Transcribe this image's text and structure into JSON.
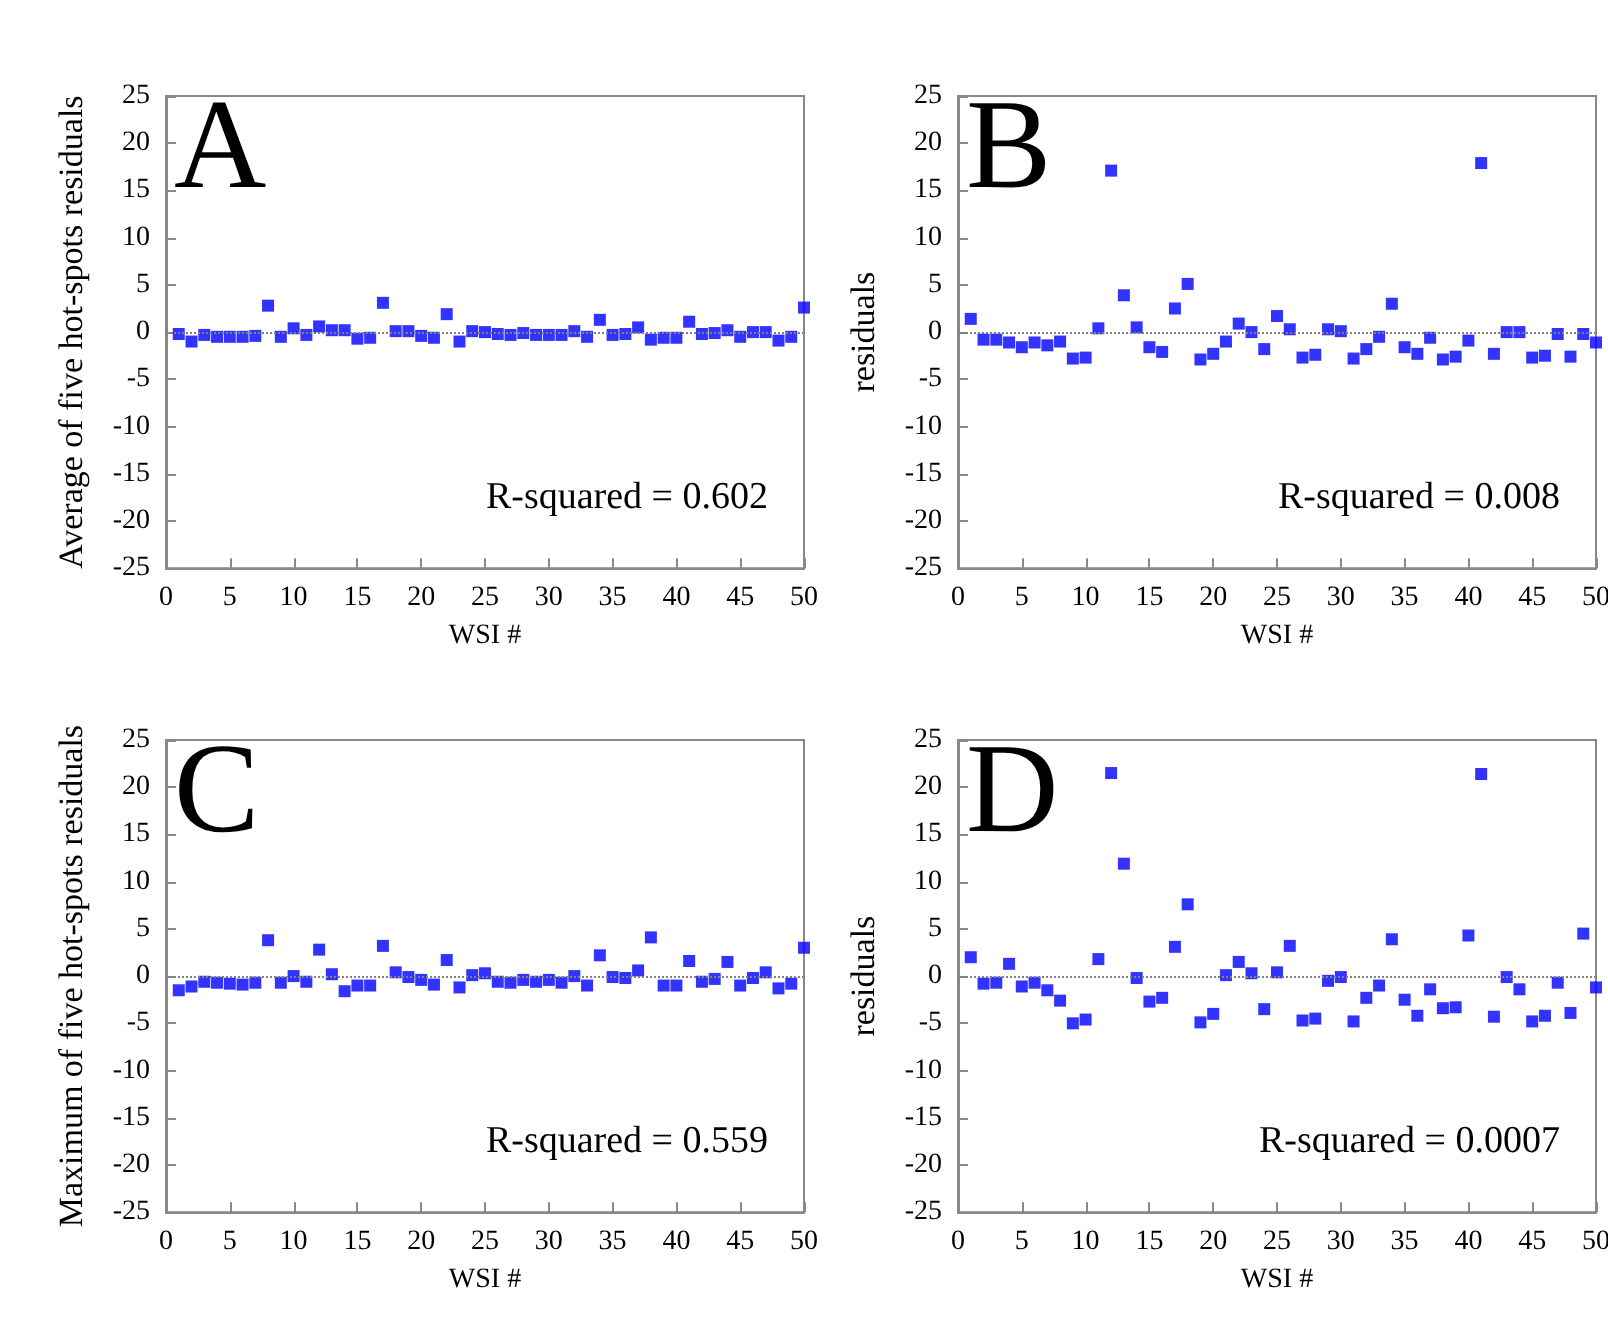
{
  "chart_data": [
    {
      "type": "scatter",
      "ylabel": "Average of five hot-spots residuals",
      "xlabel": "WSI #",
      "x": [
        1,
        2,
        3,
        4,
        5,
        6,
        7,
        8,
        9,
        10,
        11,
        12,
        13,
        14,
        15,
        16,
        17,
        18,
        19,
        20,
        21,
        22,
        23,
        24,
        25,
        26,
        27,
        28,
        29,
        30,
        31,
        32,
        33,
        34,
        35,
        36,
        37,
        38,
        39,
        40,
        41,
        42,
        43,
        44,
        45,
        46,
        47,
        48,
        49,
        50
      ],
      "series": [
        {
          "color": "#0000ff",
          "values": [
            -0.2,
            -1,
            -0.3,
            -0.5,
            -0.5,
            -0.5,
            -0.4,
            2.8,
            -0.5,
            0.4,
            -0.3,
            0.6,
            0.2,
            0.2,
            -0.7,
            -0.6,
            3.1,
            0.1,
            0.1,
            -0.4,
            -0.6,
            1.9,
            -1,
            0.1,
            0,
            -0.2,
            -0.3,
            -0.1,
            -0.3,
            -0.3,
            -0.3,
            0.1,
            -0.5,
            1.3,
            -0.3,
            -0.2,
            0.5,
            -0.8,
            -0.6,
            -0.6,
            1.1,
            -0.2,
            -0.1,
            0.2,
            -0.5,
            0,
            0,
            -0.9,
            -0.5,
            2.6
          ]
        }
      ],
      "xlim": [
        0,
        50
      ],
      "xticks": [
        0,
        5,
        10,
        15,
        20,
        25,
        30,
        35,
        40,
        45,
        50
      ],
      "ylim": [
        -25,
        25
      ],
      "yticks": [
        -25,
        -20,
        -15,
        -10,
        -5,
        0,
        5,
        10,
        15,
        20,
        25
      ],
      "grid": false,
      "marker": "square",
      "ref_lines": [
        {
          "axis": "y",
          "value": 0,
          "color": "#808080",
          "line_style": "dotted"
        }
      ],
      "annotations": [
        "A",
        "R-squared = 0.602"
      ]
    },
    {
      "type": "scatter",
      "ylabel": "residuals",
      "xlabel": "WSI #",
      "x": [
        1,
        2,
        3,
        4,
        5,
        6,
        7,
        8,
        9,
        10,
        11,
        12,
        13,
        14,
        15,
        16,
        17,
        18,
        19,
        20,
        21,
        22,
        23,
        24,
        25,
        26,
        27,
        28,
        29,
        30,
        31,
        32,
        33,
        34,
        35,
        36,
        37,
        38,
        39,
        40,
        41,
        42,
        43,
        44,
        45,
        46,
        47,
        48,
        49,
        50
      ],
      "series": [
        {
          "color": "#0000ff",
          "values": [
            1.4,
            -0.8,
            -0.8,
            -1.1,
            -1.6,
            -1.1,
            -1.4,
            -1,
            -2.8,
            -2.7,
            0.4,
            17.1,
            3.9,
            0.5,
            -1.6,
            -2.1,
            2.5,
            5.1,
            -2.9,
            -2.3,
            -1,
            0.9,
            0,
            -1.8,
            1.7,
            0.3,
            -2.7,
            -2.4,
            0.3,
            0.1,
            -2.8,
            -1.8,
            -0.5,
            3,
            -1.6,
            -2.3,
            -0.6,
            -2.9,
            -2.6,
            -0.9,
            17.9,
            -2.3,
            0,
            0,
            -2.7,
            -2.5,
            -0.2,
            -2.6,
            -0.2,
            -1.1
          ]
        }
      ],
      "xlim": [
        0,
        50
      ],
      "xticks": [
        0,
        5,
        10,
        15,
        20,
        25,
        30,
        35,
        40,
        45,
        50
      ],
      "ylim": [
        -25,
        25
      ],
      "yticks": [
        -25,
        -20,
        -15,
        -10,
        -5,
        0,
        5,
        10,
        15,
        20,
        25
      ],
      "grid": false,
      "marker": "square",
      "ref_lines": [
        {
          "axis": "y",
          "value": 0,
          "color": "#808080",
          "line_style": "dotted"
        }
      ],
      "annotations": [
        "B",
        "R-squared = 0.008"
      ]
    },
    {
      "type": "scatter",
      "ylabel": "Maximum of five hot-spots residuals",
      "xlabel": "WSI #",
      "x": [
        1,
        2,
        3,
        4,
        5,
        6,
        7,
        8,
        9,
        10,
        11,
        12,
        13,
        14,
        15,
        16,
        17,
        18,
        19,
        20,
        21,
        22,
        23,
        24,
        25,
        26,
        27,
        28,
        29,
        30,
        31,
        32,
        33,
        34,
        35,
        36,
        37,
        38,
        39,
        40,
        41,
        42,
        43,
        44,
        45,
        46,
        47,
        48,
        49,
        50
      ],
      "series": [
        {
          "color": "#0000ff",
          "values": [
            -1.5,
            -1.1,
            -0.6,
            -0.7,
            -0.8,
            -0.9,
            -0.7,
            3.8,
            -0.7,
            0,
            -0.6,
            2.8,
            0.2,
            -1.6,
            -1,
            -1,
            3.2,
            0.4,
            -0.1,
            -0.4,
            -0.9,
            1.7,
            -1.2,
            0.1,
            0.3,
            -0.6,
            -0.7,
            -0.4,
            -0.6,
            -0.4,
            -0.7,
            0,
            -1,
            2.2,
            -0.1,
            -0.2,
            0.6,
            4.1,
            -1,
            -1,
            1.6,
            -0.6,
            -0.3,
            1.5,
            -1,
            -0.2,
            0.4,
            -1.3,
            -0.8,
            3
          ]
        }
      ],
      "xlim": [
        0,
        50
      ],
      "xticks": [
        0,
        5,
        10,
        15,
        20,
        25,
        30,
        35,
        40,
        45,
        50
      ],
      "ylim": [
        -25,
        25
      ],
      "yticks": [
        -25,
        -20,
        -15,
        -10,
        -5,
        0,
        5,
        10,
        15,
        20,
        25
      ],
      "grid": false,
      "marker": "square",
      "ref_lines": [
        {
          "axis": "y",
          "value": 0,
          "color": "#808080",
          "line_style": "dotted"
        }
      ],
      "annotations": [
        "C",
        "R-squared = 0.559"
      ]
    },
    {
      "type": "scatter",
      "ylabel": "residuals",
      "xlabel": "WSI #",
      "x": [
        1,
        2,
        3,
        4,
        5,
        6,
        7,
        8,
        9,
        10,
        11,
        12,
        13,
        14,
        15,
        16,
        17,
        18,
        19,
        20,
        21,
        22,
        23,
        24,
        25,
        26,
        27,
        28,
        29,
        30,
        31,
        32,
        33,
        34,
        35,
        36,
        37,
        38,
        39,
        40,
        41,
        42,
        43,
        44,
        45,
        46,
        47,
        48,
        49,
        50
      ],
      "series": [
        {
          "color": "#0000ff",
          "values": [
            2,
            -0.8,
            -0.7,
            1.3,
            -1.1,
            -0.7,
            -1.5,
            -2.6,
            -5,
            -4.6,
            1.8,
            21.5,
            11.9,
            -0.2,
            -2.7,
            -2.3,
            3.1,
            7.6,
            -4.9,
            -4,
            0.1,
            1.5,
            0.3,
            -3.5,
            0.4,
            3.2,
            -4.7,
            -4.5,
            -0.5,
            -0.1,
            -4.8,
            -2.3,
            -1,
            3.9,
            -2.5,
            -4.2,
            -1.4,
            -3.4,
            -3.3,
            4.3,
            21.4,
            -4.3,
            -0.1,
            -1.4,
            -4.8,
            -4.2,
            -0.7,
            -3.9,
            4.5,
            -1.2
          ]
        }
      ],
      "xlim": [
        0,
        50
      ],
      "xticks": [
        0,
        5,
        10,
        15,
        20,
        25,
        30,
        35,
        40,
        45,
        50
      ],
      "ylim": [
        -25,
        25
      ],
      "yticks": [
        -25,
        -20,
        -15,
        -10,
        -5,
        0,
        5,
        10,
        15,
        20,
        25
      ],
      "grid": false,
      "marker": "square",
      "ref_lines": [
        {
          "axis": "y",
          "value": 0,
          "color": "#808080",
          "line_style": "dotted"
        }
      ],
      "annotations": [
        "D",
        "R-squared = 0.0007"
      ]
    }
  ]
}
